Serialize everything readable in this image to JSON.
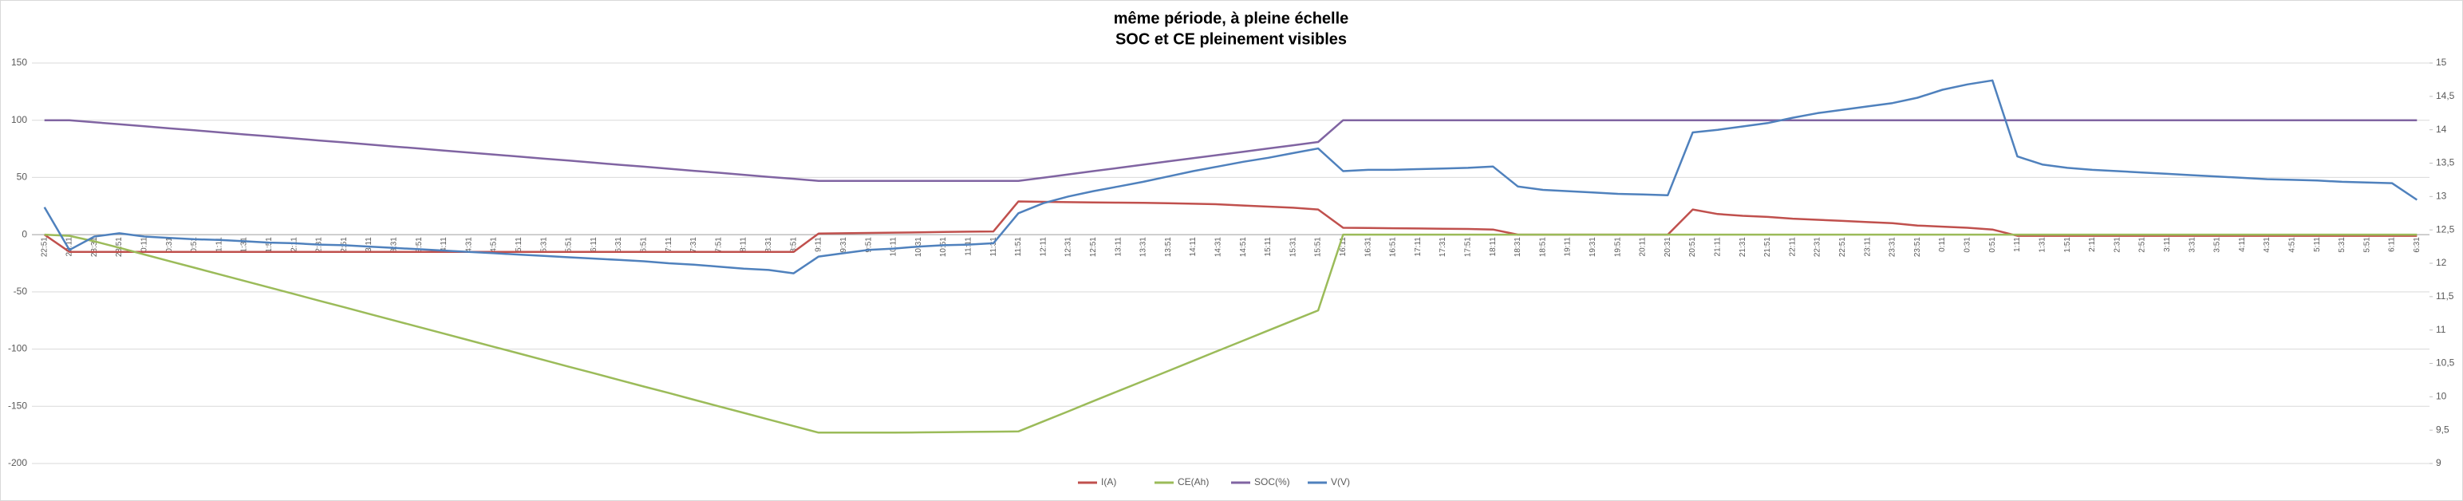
{
  "chart_data": {
    "type": "line",
    "title": "même période, à pleine échelle",
    "subtitle": "SOC et CE pleinement visibles",
    "categories": [
      "22:51",
      "23:11",
      "23:31",
      "23:51",
      "0:11",
      "0:31",
      "0:51",
      "1:11",
      "1:31",
      "1:51",
      "2:11",
      "2:31",
      "2:51",
      "3:11",
      "3:31",
      "3:51",
      "4:11",
      "4:31",
      "4:51",
      "5:11",
      "5:31",
      "5:51",
      "6:11",
      "6:31",
      "6:51",
      "7:11",
      "7:31",
      "7:51",
      "8:11",
      "8:31",
      "8:51",
      "9:11",
      "9:31",
      "9:51",
      "10:11",
      "10:31",
      "10:51",
      "11:11",
      "11:31",
      "11:51",
      "12:11",
      "12:31",
      "12:51",
      "13:11",
      "13:31",
      "13:51",
      "14:11",
      "14:31",
      "14:51",
      "15:11",
      "15:31",
      "15:51",
      "16:11",
      "16:31",
      "16:51",
      "17:11",
      "17:31",
      "17:51",
      "18:11",
      "18:31",
      "18:51",
      "19:11",
      "19:31",
      "19:51",
      "20:11",
      "20:31",
      "20:51",
      "21:11",
      "21:31",
      "21:51",
      "22:11",
      "22:31",
      "22:51",
      "23:11",
      "23:31",
      "23:51",
      "0:11",
      "0:31",
      "0:51",
      "1:11",
      "1:31",
      "1:51",
      "2:11",
      "2:31",
      "2:51",
      "3:11",
      "3:31",
      "3:51",
      "4:11",
      "4:31",
      "4:51",
      "5:11",
      "5:31",
      "5:51",
      "6:11",
      "6:31"
    ],
    "series": [
      {
        "name": "I(A)",
        "color": "#c0504d",
        "values": [
          0,
          -15,
          -15,
          -15,
          -15,
          -15,
          -15,
          -15,
          -15,
          -15,
          -15,
          -15,
          -15,
          -15,
          -15,
          -15,
          -15,
          -15,
          -15,
          -15,
          -15,
          -15,
          -15,
          -15,
          -15,
          -15,
          -15,
          -15,
          -15,
          -15,
          -15,
          1,
          1.2,
          1.5,
          1.8,
          2,
          2.3,
          2.6,
          2.8,
          29,
          28.7,
          28.4,
          28.2,
          28,
          27.8,
          27.5,
          27,
          26.5,
          25.5,
          24.5,
          23.5,
          22,
          6,
          5.8,
          5.6,
          5.4,
          5.2,
          5,
          4.5,
          0,
          0,
          0,
          0,
          0,
          0,
          0,
          22,
          18,
          16.5,
          15.5,
          14,
          13,
          12,
          11,
          10,
          8,
          7,
          6,
          4.5,
          -1,
          -1,
          -1,
          -1,
          -1,
          -1,
          -1,
          -1,
          -1,
          -1,
          -1,
          -1,
          -1,
          -1,
          -1,
          -1,
          -1
        ]
      },
      {
        "name": "CE(Ah)",
        "color": "#9bbb59",
        "values": [
          0,
          -1,
          -5.8,
          -11.5,
          -17.3,
          -23.1,
          -28.8,
          -34.6,
          -40.4,
          -46.1,
          -51.9,
          -57.7,
          -63.4,
          -69.2,
          -75,
          -80.7,
          -86.5,
          -92.3,
          -98.1,
          -103.8,
          -109.6,
          -115.4,
          -121.1,
          -126.9,
          -132.7,
          -138.4,
          -144.2,
          -150,
          -155.7,
          -161.5,
          -167.3,
          -173,
          -173,
          -173,
          -173,
          -172.8,
          -172.6,
          -172.4,
          -172.2,
          -172,
          -163.2,
          -154.4,
          -145.5,
          -136.7,
          -127.9,
          -119.1,
          -110.3,
          -101.4,
          -92.6,
          -83.8,
          -75,
          -66.2,
          0,
          0,
          0,
          0,
          0,
          0,
          0,
          0,
          0,
          0,
          0,
          0,
          0,
          0,
          0,
          0,
          0,
          0,
          0,
          0,
          0,
          0,
          0,
          0,
          0,
          0,
          0,
          0,
          0,
          0,
          0,
          0,
          0,
          0,
          0,
          0,
          0,
          0,
          0,
          0,
          0,
          0,
          0,
          0
        ]
      },
      {
        "name": "SOC(%)",
        "color": "#8064a2",
        "values": [
          100,
          100,
          98.2,
          96.5,
          94.7,
          92.9,
          91.2,
          89.4,
          87.6,
          85.9,
          84.1,
          82.3,
          80.6,
          78.8,
          77,
          75.3,
          73.5,
          71.7,
          70,
          68.2,
          66.4,
          64.7,
          62.9,
          61.1,
          59.4,
          57.6,
          55.8,
          54.1,
          52.3,
          50.5,
          48.8,
          47,
          47,
          47,
          47,
          47,
          47,
          47,
          47,
          47,
          49.8,
          52.7,
          55.5,
          58.3,
          61.2,
          64,
          66.8,
          69.6,
          72.5,
          75.3,
          78.1,
          81,
          100,
          100,
          100,
          100,
          100,
          100,
          100,
          100,
          100,
          100,
          100,
          100,
          100,
          100,
          100,
          100,
          100,
          100,
          100,
          100,
          100,
          100,
          100,
          100,
          100,
          100,
          100,
          100,
          100,
          100,
          100,
          100,
          100,
          100,
          100,
          100,
          100,
          100,
          100,
          100,
          100,
          100,
          100,
          100
        ]
      },
      {
        "name": "V(V)",
        "color": "#4f81bd",
        "axis": "y2",
        "values": [
          12.84,
          12.2,
          12.4,
          12.45,
          12.4,
          12.38,
          12.36,
          12.35,
          12.33,
          12.31,
          12.3,
          12.28,
          12.27,
          12.25,
          12.23,
          12.21,
          12.19,
          12.17,
          12.15,
          12.13,
          12.11,
          12.09,
          12.07,
          12.05,
          12.03,
          12,
          11.98,
          11.95,
          11.92,
          11.9,
          11.85,
          12.1,
          12.15,
          12.2,
          12.22,
          12.25,
          12.27,
          12.28,
          12.3,
          12.75,
          12.9,
          13,
          13.08,
          13.15,
          13.22,
          13.3,
          13.38,
          13.45,
          13.52,
          13.58,
          13.65,
          13.72,
          13.38,
          13.4,
          13.4,
          13.41,
          13.42,
          13.43,
          13.45,
          13.15,
          13.1,
          13.08,
          13.06,
          13.04,
          13.03,
          13.02,
          13.96,
          14,
          14.05,
          14.1,
          14.18,
          14.25,
          14.3,
          14.35,
          14.4,
          14.48,
          14.6,
          14.68,
          14.74,
          13.6,
          13.48,
          13.43,
          13.4,
          13.38,
          13.36,
          13.34,
          13.32,
          13.3,
          13.28,
          13.26,
          13.25,
          13.24,
          13.22,
          13.21,
          13.2,
          12.95
        ]
      }
    ],
    "ylim": [
      -200,
      150
    ],
    "yticks": [
      -200,
      -150,
      -100,
      -50,
      0,
      50,
      100,
      150
    ],
    "y2lim": [
      9,
      15
    ],
    "y2ticks": [
      9,
      {
        "value": 9.5,
        "label": "9,5"
      },
      10,
      {
        "value": 10.5,
        "label": "10,5"
      },
      11,
      {
        "value": 11.5,
        "label": "11,5"
      },
      12,
      {
        "value": 12.5,
        "label": "12,5"
      },
      13,
      {
        "value": 13.5,
        "label": "13,5"
      },
      14,
      {
        "value": 14.5,
        "label": "14,5"
      },
      15
    ],
    "grid": true,
    "legend": "bottom"
  }
}
